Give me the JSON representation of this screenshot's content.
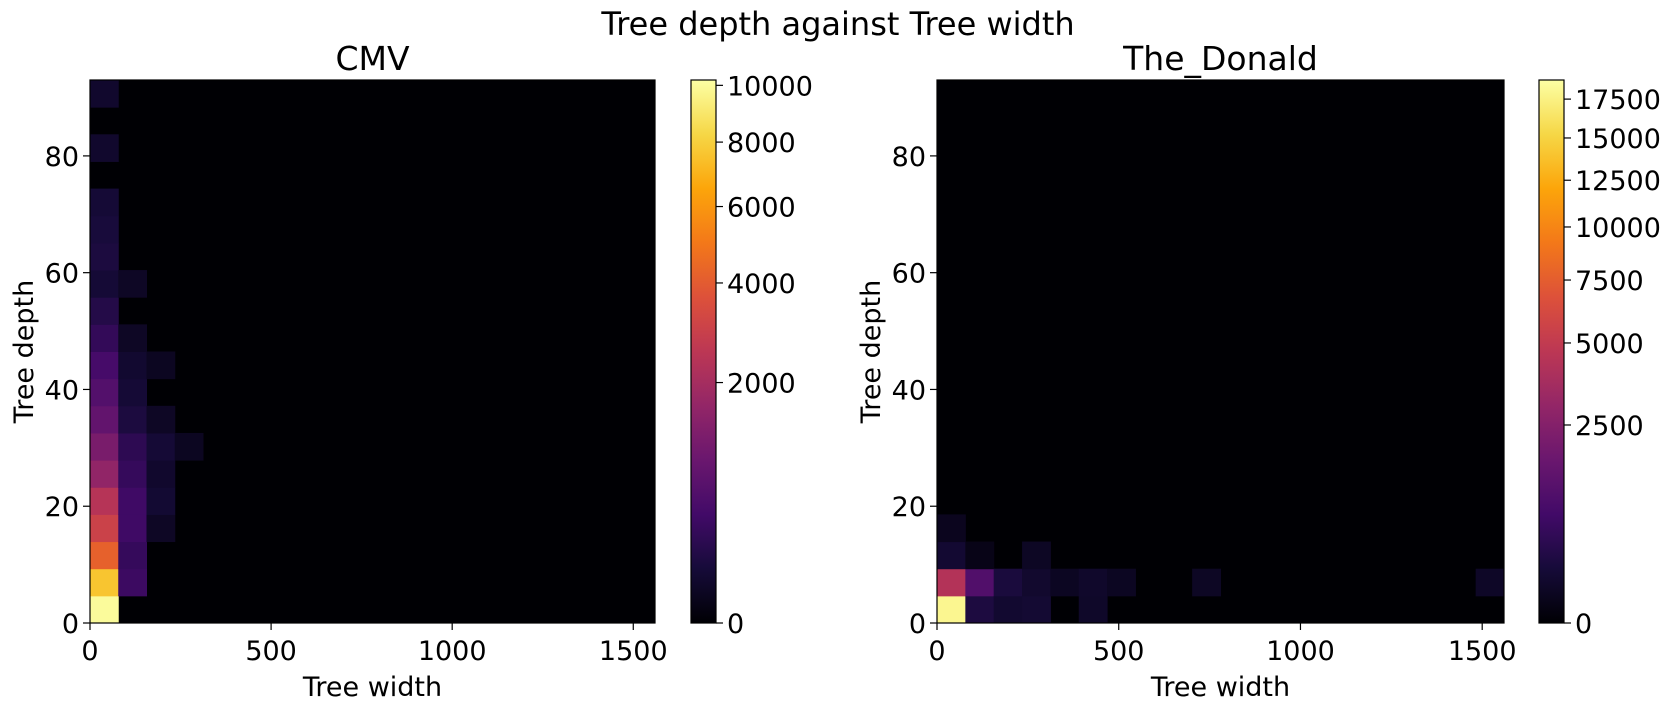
{
  "figure": {
    "suptitle": "Tree depth against Tree width"
  },
  "chart_data": [
    {
      "type": "heatmap",
      "title": "CMV",
      "xlabel": "Tree width",
      "ylabel": "Tree depth",
      "xlim": [
        0,
        1560
      ],
      "ylim": [
        0,
        93
      ],
      "xticks": [
        0,
        500,
        1000,
        1500
      ],
      "yticks": [
        0,
        20,
        40,
        60,
        80
      ],
      "colormap": "inferno",
      "color_scale": "sqrt",
      "vmax": 10200,
      "colorbar_ticks": [
        0,
        2000,
        4000,
        6000,
        8000,
        10000
      ],
      "bin_width": 78,
      "bin_height": 4.65,
      "cells": [
        {
          "x": 0,
          "y": 0,
          "count": 10000
        },
        {
          "x": 0,
          "y": 1,
          "count": 7600
        },
        {
          "x": 0,
          "y": 2,
          "count": 4200
        },
        {
          "x": 0,
          "y": 3,
          "count": 3000
        },
        {
          "x": 0,
          "y": 4,
          "count": 2400
        },
        {
          "x": 0,
          "y": 5,
          "count": 1600
        },
        {
          "x": 0,
          "y": 6,
          "count": 1150
        },
        {
          "x": 0,
          "y": 7,
          "count": 800
        },
        {
          "x": 0,
          "y": 8,
          "count": 600
        },
        {
          "x": 0,
          "y": 9,
          "count": 450
        },
        {
          "x": 0,
          "y": 10,
          "count": 280
        },
        {
          "x": 0,
          "y": 11,
          "count": 180
        },
        {
          "x": 0,
          "y": 12,
          "count": 90
        },
        {
          "x": 0,
          "y": 13,
          "count": 130
        },
        {
          "x": 0,
          "y": 14,
          "count": 110
        },
        {
          "x": 0,
          "y": 15,
          "count": 90
        },
        {
          "x": 0,
          "y": 17,
          "count": 60
        },
        {
          "x": 0,
          "y": 19,
          "count": 60
        },
        {
          "x": 1,
          "y": 1,
          "count": 350
        },
        {
          "x": 1,
          "y": 2,
          "count": 300
        },
        {
          "x": 1,
          "y": 3,
          "count": 380
        },
        {
          "x": 1,
          "y": 4,
          "count": 380
        },
        {
          "x": 1,
          "y": 5,
          "count": 300
        },
        {
          "x": 1,
          "y": 6,
          "count": 240
        },
        {
          "x": 1,
          "y": 7,
          "count": 130
        },
        {
          "x": 1,
          "y": 8,
          "count": 90
        },
        {
          "x": 1,
          "y": 9,
          "count": 70
        },
        {
          "x": 1,
          "y": 10,
          "count": 40
        },
        {
          "x": 1,
          "y": 12,
          "count": 40
        },
        {
          "x": 2,
          "y": 3,
          "count": 40
        },
        {
          "x": 2,
          "y": 4,
          "count": 80
        },
        {
          "x": 2,
          "y": 5,
          "count": 60
        },
        {
          "x": 2,
          "y": 6,
          "count": 90
        },
        {
          "x": 2,
          "y": 7,
          "count": 40
        },
        {
          "x": 2,
          "y": 9,
          "count": 30
        },
        {
          "x": 3,
          "y": 6,
          "count": 30
        }
      ]
    },
    {
      "type": "heatmap",
      "title": "The_Donald",
      "xlabel": "Tree width",
      "ylabel": "Tree depth",
      "xlim": [
        0,
        1560
      ],
      "ylim": [
        0,
        93
      ],
      "xticks": [
        0,
        500,
        1000,
        1500
      ],
      "yticks": [
        0,
        20,
        40,
        60,
        80
      ],
      "colormap": "inferno",
      "color_scale": "sqrt",
      "vmax": 18800,
      "colorbar_ticks": [
        0,
        2500,
        5000,
        7500,
        10000,
        12500,
        15000,
        17500
      ],
      "bin_width": 78,
      "bin_height": 4.65,
      "cells": [
        {
          "x": 0,
          "y": 0,
          "count": 18000
        },
        {
          "x": 0,
          "y": 1,
          "count": 4300
        },
        {
          "x": 0,
          "y": 2,
          "count": 140
        },
        {
          "x": 0,
          "y": 3,
          "count": 45
        },
        {
          "x": 1,
          "y": 0,
          "count": 250
        },
        {
          "x": 1,
          "y": 1,
          "count": 1050
        },
        {
          "x": 1,
          "y": 2,
          "count": 25
        },
        {
          "x": 2,
          "y": 0,
          "count": 130
        },
        {
          "x": 2,
          "y": 1,
          "count": 220
        },
        {
          "x": 3,
          "y": 0,
          "count": 150
        },
        {
          "x": 3,
          "y": 1,
          "count": 120
        },
        {
          "x": 3,
          "y": 2,
          "count": 70
        },
        {
          "x": 4,
          "y": 1,
          "count": 60
        },
        {
          "x": 5,
          "y": 0,
          "count": 90
        },
        {
          "x": 5,
          "y": 1,
          "count": 100
        },
        {
          "x": 6,
          "y": 1,
          "count": 60
        },
        {
          "x": 9,
          "y": 1,
          "count": 70
        },
        {
          "x": 19,
          "y": 1,
          "count": 80
        }
      ]
    }
  ]
}
